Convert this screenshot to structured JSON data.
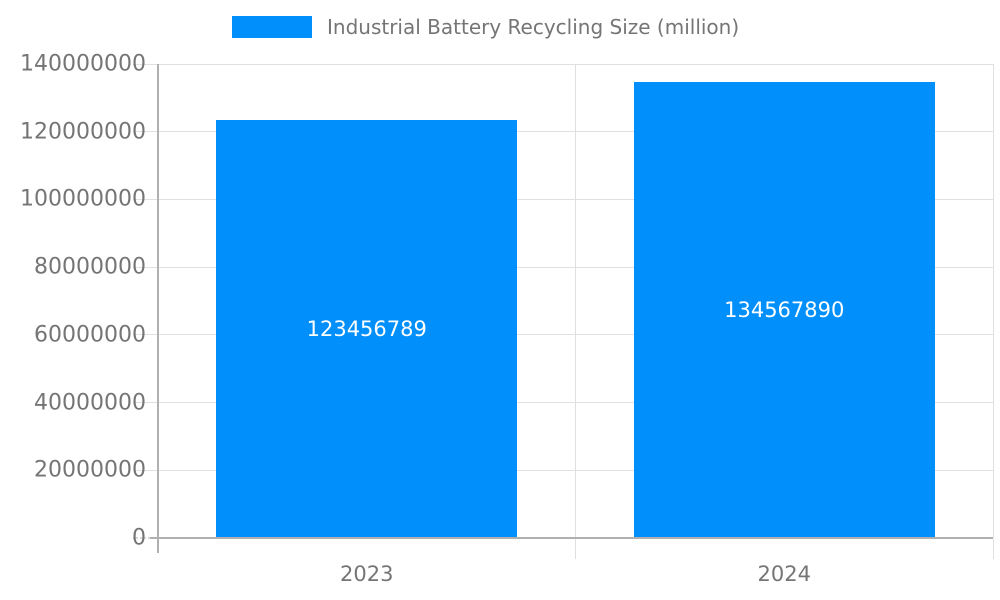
{
  "chart_data": {
    "type": "bar",
    "title": "Industrial Battery Recycling Size (million)",
    "categories": [
      "2023",
      "2024"
    ],
    "series": [
      {
        "name": "Industrial Battery Recycling Size (million)",
        "values": [
          123456789,
          134567890
        ]
      }
    ],
    "bar_value_labels": [
      "123456789",
      "134567890"
    ],
    "y_ticks": [
      0,
      20000000,
      40000000,
      60000000,
      80000000,
      100000000,
      120000000,
      140000000
    ],
    "y_tick_labels": [
      "0",
      "20000000",
      "40000000",
      "60000000",
      "80000000",
      "100000000",
      "120000000",
      "140000000"
    ],
    "ylim": [
      0,
      140000000
    ],
    "xlabel": "",
    "ylabel": "",
    "grid": true,
    "legend_position": "top",
    "colors": {
      "bar": "#008FFB",
      "axis_text": "#757575",
      "value_label": "#ffffff",
      "gridline": "#e0e0e0",
      "axis_line": "#b0b0b0",
      "background": "#ffffff"
    }
  }
}
